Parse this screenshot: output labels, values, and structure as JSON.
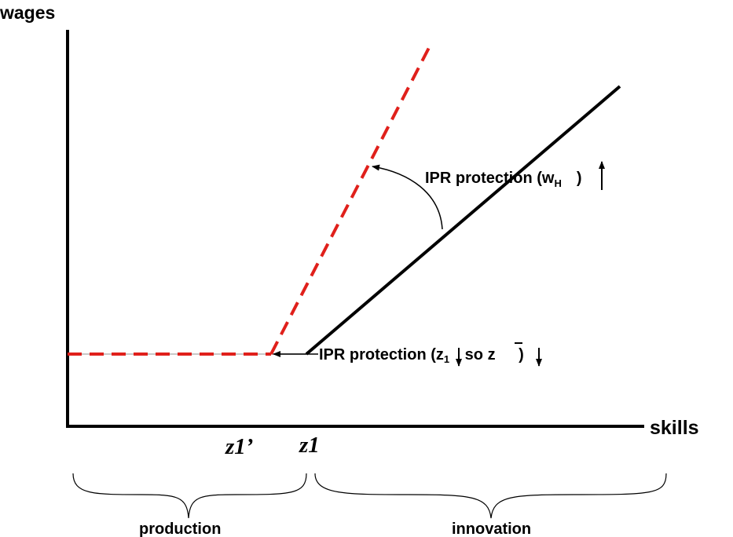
{
  "axes": {
    "y_label": "wages",
    "x_label": "skills"
  },
  "x_ticks": {
    "z1_prime": "z1’",
    "z1": "z1"
  },
  "annotations": {
    "wage_shift": {
      "prefix": "IPR protection (w",
      "subscript": "H",
      "suffix": ")"
    },
    "threshold_shift": {
      "prefix": "IPR protection (z",
      "subscript": "1",
      "middle": " so  ",
      "zbar": "z",
      "suffix": " )"
    }
  },
  "regions": {
    "left": "production",
    "right": "innovation"
  },
  "colors": {
    "axis": "#000000",
    "original_schedule": "#000000",
    "new_schedule": "#e0201b",
    "reference_line": "#c8c8c8"
  }
}
